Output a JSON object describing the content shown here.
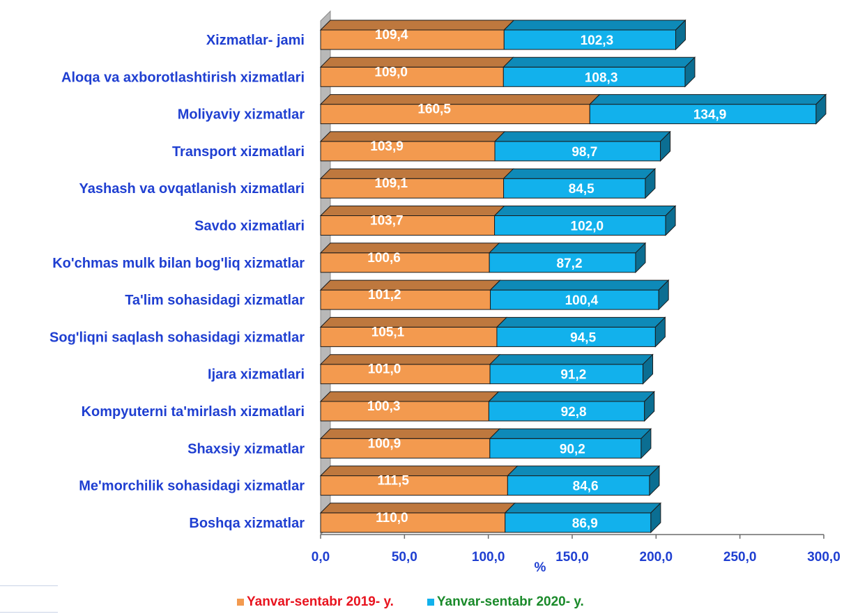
{
  "chart_data": {
    "type": "bar",
    "orientation": "horizontal",
    "stacked": true,
    "categories": [
      "Xizmatlar- jami",
      "Aloqa va axborotlashtirish  xizmatlari",
      "Moliyaviy xizmatlar",
      "Transport xizmatlari",
      "Yashash va ovqatlanish  xizmatlari",
      "Savdo xizmatlari",
      "Ko'chmas mulk bilan bog'liq xizmatlar",
      "Ta'lim sohasidagi xizmatlar",
      "Sog'liqni saqlash sohasidagi xizmatlar",
      "Ijara xizmatlari",
      "Kompyuterni ta'mirlash xizmatlari",
      "Shaxsiy xizmatlar",
      "Me'morchilik sohasidagi xizmatlar",
      "Boshqa xizmatlar"
    ],
    "series": [
      {
        "name": "Yanvar-sentabr  2019- y.",
        "values": [
          109.4,
          109.0,
          160.5,
          103.9,
          109.1,
          103.7,
          100.6,
          101.2,
          105.1,
          101.0,
          100.3,
          100.9,
          111.5,
          110.0
        ],
        "labels": [
          "109,4",
          "109,0",
          "160,5",
          "103,9",
          "109,1",
          "103,7",
          "100,6",
          "101,2",
          "105,1",
          "101,0",
          "100,3",
          "100,9",
          "111,5",
          "110,0"
        ],
        "color": "#f39a4f",
        "name_color": "#e8141f",
        "year_color": "#e8141f"
      },
      {
        "name": "Yanvar-sentabr  2020- y.",
        "values": [
          102.3,
          108.3,
          134.9,
          98.7,
          84.5,
          102.0,
          87.2,
          100.4,
          94.5,
          91.2,
          92.8,
          90.2,
          84.6,
          86.9
        ],
        "labels": [
          "102,3",
          "108,3",
          "134,9",
          "98,7",
          "84,5",
          "102,0",
          "87,2",
          "100,4",
          "94,5",
          "91,2",
          "92,8",
          "90,2",
          "84,6",
          "86,9"
        ],
        "color": "#12b1ec",
        "name_color": "#1a8a2a"
      }
    ],
    "xlim": [
      0,
      300
    ],
    "xticks": [
      "0,0",
      "50,0",
      "100,0",
      "150,0",
      "200,0",
      "250,0",
      "300,0"
    ],
    "xlabel": "%",
    "legend_position": "bottom",
    "grid": false
  }
}
